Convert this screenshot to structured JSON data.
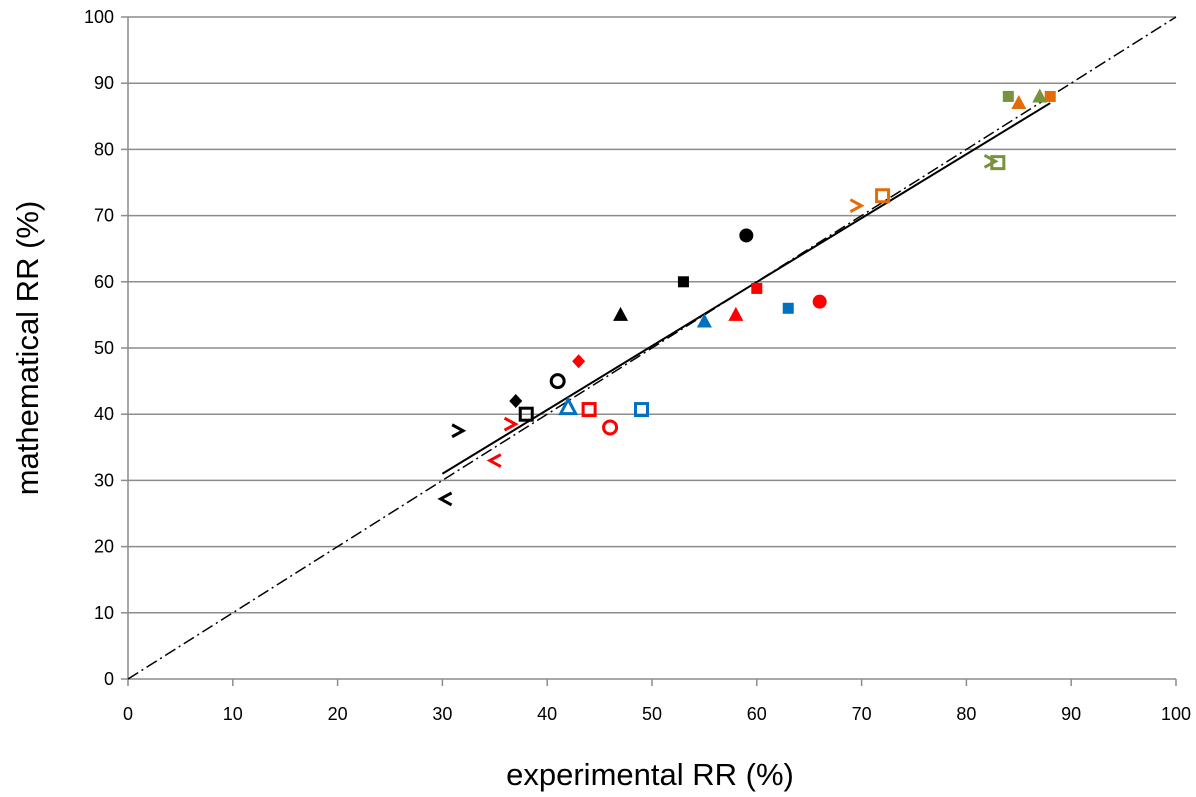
{
  "chart_data": {
    "type": "scatter",
    "title": "",
    "xlabel": "experimental RR (%)",
    "ylabel": "mathematical RR (%)",
    "xlim": [
      0,
      100
    ],
    "ylim": [
      0,
      100
    ],
    "x_ticks": [
      "0",
      "10",
      "20",
      "30",
      "40",
      "50",
      "60",
      "70",
      "80",
      "90",
      "100"
    ],
    "y_ticks": [
      "0",
      "10",
      "20",
      "30",
      "40",
      "50",
      "60",
      "70",
      "80",
      "90",
      "100"
    ],
    "grid": "horizontal",
    "legend": "none",
    "colors": {
      "black": "#000000",
      "red": "#ff0000",
      "blue": "#0070c0",
      "orange": "#e36c09",
      "green": "#77933c"
    },
    "points": [
      {
        "x": 59,
        "y": 67,
        "marker": "circle",
        "fill": "filled",
        "color": "black"
      },
      {
        "x": 53,
        "y": 60,
        "marker": "square",
        "fill": "filled",
        "color": "black"
      },
      {
        "x": 47,
        "y": 55,
        "marker": "triangle",
        "fill": "filled",
        "color": "black"
      },
      {
        "x": 37,
        "y": 42,
        "marker": "diamond",
        "fill": "filled",
        "color": "black"
      },
      {
        "x": 41,
        "y": 45,
        "marker": "circle",
        "fill": "open",
        "color": "black"
      },
      {
        "x": 38,
        "y": 40,
        "marker": "square",
        "fill": "open",
        "color": "black"
      },
      {
        "x": 31.5,
        "y": 37.5,
        "marker": "caret-right",
        "fill": "open",
        "color": "black"
      },
      {
        "x": 30.3,
        "y": 27.2,
        "marker": "caret-left",
        "fill": "open",
        "color": "black"
      },
      {
        "x": 66,
        "y": 57,
        "marker": "circle",
        "fill": "filled",
        "color": "red"
      },
      {
        "x": 60,
        "y": 59,
        "marker": "square",
        "fill": "filled",
        "color": "red"
      },
      {
        "x": 58,
        "y": 55,
        "marker": "triangle",
        "fill": "filled",
        "color": "red"
      },
      {
        "x": 43,
        "y": 48,
        "marker": "diamond",
        "fill": "filled",
        "color": "red"
      },
      {
        "x": 46,
        "y": 38,
        "marker": "circle",
        "fill": "open",
        "color": "red"
      },
      {
        "x": 44,
        "y": 40.7,
        "marker": "square",
        "fill": "open",
        "color": "red"
      },
      {
        "x": 36.5,
        "y": 38.5,
        "marker": "caret-right",
        "fill": "open",
        "color": "red"
      },
      {
        "x": 35,
        "y": 33,
        "marker": "caret-left",
        "fill": "open",
        "color": "red"
      },
      {
        "x": 63,
        "y": 56,
        "marker": "square",
        "fill": "filled",
        "color": "blue"
      },
      {
        "x": 55,
        "y": 54,
        "marker": "triangle",
        "fill": "filled",
        "color": "blue"
      },
      {
        "x": 49,
        "y": 40.7,
        "marker": "square",
        "fill": "open",
        "color": "blue"
      },
      {
        "x": 42,
        "y": 41,
        "marker": "triangle",
        "fill": "open",
        "color": "blue"
      },
      {
        "x": 85,
        "y": 87,
        "marker": "triangle",
        "fill": "filled",
        "color": "orange"
      },
      {
        "x": 88,
        "y": 88,
        "marker": "square",
        "fill": "filled",
        "color": "orange"
      },
      {
        "x": 72,
        "y": 73,
        "marker": "square",
        "fill": "open",
        "color": "orange"
      },
      {
        "x": 69.5,
        "y": 71.5,
        "marker": "caret-right",
        "fill": "open",
        "color": "orange"
      },
      {
        "x": 84,
        "y": 88,
        "marker": "square",
        "fill": "filled",
        "color": "green"
      },
      {
        "x": 87,
        "y": 88,
        "marker": "triangle",
        "fill": "filled",
        "color": "green"
      },
      {
        "x": 83,
        "y": 78,
        "marker": "square",
        "fill": "open",
        "color": "green"
      },
      {
        "x": 82.3,
        "y": 78.2,
        "marker": "caret-right",
        "fill": "open",
        "color": "green"
      }
    ],
    "lines": [
      {
        "style": "solid",
        "color": "black",
        "x": [
          30,
          88
        ],
        "y": [
          31,
          87
        ]
      },
      {
        "style": "dash-dot",
        "color": "black",
        "x": [
          0,
          100
        ],
        "y": [
          0,
          100
        ]
      }
    ]
  }
}
